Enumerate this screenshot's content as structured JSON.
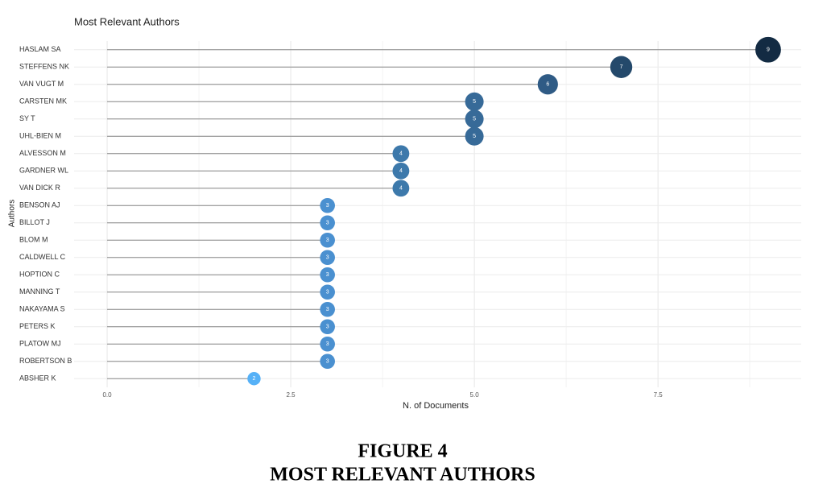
{
  "chart_data": {
    "type": "lollipop",
    "title": "Most Relevant Authors",
    "categories": [
      "HASLAM SA",
      "STEFFENS NK",
      "VAN VUGT M",
      "CARSTEN MK",
      "SY T",
      "UHL-BIEN M",
      "ALVESSON M",
      "GARDNER WL",
      "VAN DICK R",
      "BENSON AJ",
      "BILLOT J",
      "BLOM M",
      "CALDWELL C",
      "HOPTION C",
      "MANNING T",
      "NAKAYAMA S",
      "PETERS K",
      "PLATOW MJ",
      "ROBERTSON B",
      "ABSHER K"
    ],
    "values": [
      9,
      7,
      6,
      5,
      5,
      5,
      4,
      4,
      4,
      3,
      3,
      3,
      3,
      3,
      3,
      3,
      3,
      3,
      3,
      2
    ],
    "colors": [
      "#132b43",
      "#24496b",
      "#2f5b85",
      "#376a98",
      "#376a98",
      "#376a98",
      "#3d79ab",
      "#3d79ab",
      "#3d79ab",
      "#4a90d0",
      "#4a90d0",
      "#4a90d0",
      "#4a90d0",
      "#4a90d0",
      "#4a90d0",
      "#4a90d0",
      "#4a90d0",
      "#4a90d0",
      "#4a90d0",
      "#56b1f7"
    ],
    "xlabel": "N. of Documents",
    "ylabel": "Authors",
    "xlim": [
      -0.45,
      9.45
    ],
    "xticks": [
      {
        "value": 0,
        "label": "0.0"
      },
      {
        "value": 2.5,
        "label": "2.5"
      },
      {
        "value": 5,
        "label": "5.0"
      },
      {
        "value": 7.5,
        "label": "7.5"
      }
    ],
    "grid": true,
    "caption": [
      "FIGURE 4",
      "MOST RELEVANT AUTHORS"
    ]
  }
}
